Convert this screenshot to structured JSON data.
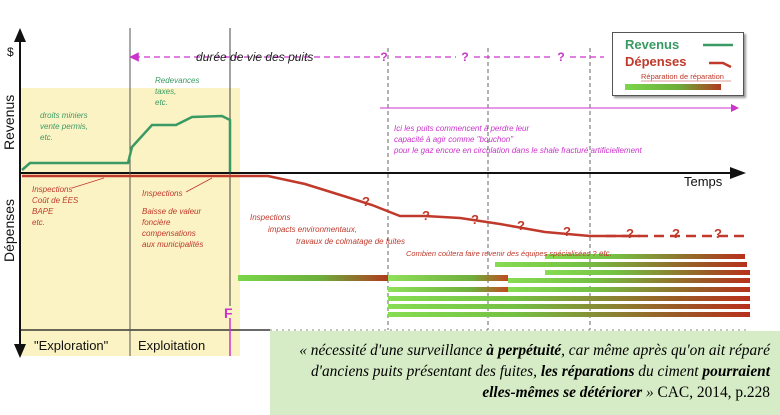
{
  "axes": {
    "y_symbol": "$",
    "y_upper_label": "Revenus",
    "y_lower_label": "Dépenses",
    "x_label": "Temps"
  },
  "phases": {
    "exploration": "\"Exploration\"",
    "exploitation": "Exploitation",
    "end_marker": "F"
  },
  "lifetime_label": "durée de vie des puits",
  "question_mark": "?",
  "revenue_notes": {
    "exploration": [
      "droits miniers",
      "vente permis,",
      "etc."
    ],
    "exploitation": [
      "Redevances",
      "taxes,",
      "etc."
    ]
  },
  "expense_notes": {
    "exploration": [
      "Inspections",
      "Coût de ÉES",
      "BAPE",
      "etc."
    ],
    "exploitation": [
      "Inspections",
      "Baisse de valeur",
      "foncière",
      "compensations",
      "aux municipalités"
    ],
    "post": [
      "Inspections",
      "impacts environmentaux,",
      "travaux de colmatage de fuites"
    ],
    "repair_cost": "Combien coûtera faire revenir des équipes spécialisées ?",
    "repair_cost_etc": "etc."
  },
  "leak_note": [
    "Ici les puits commencent à perdre leur",
    "capacité à agir comme \"bouchon\"",
    "pour le gaz encore en circulation dans le shale fracturé artificiellement"
  ],
  "legend": {
    "revenue": "Revenus",
    "expenses": "Dépenses",
    "repair": "Réparation de réparation"
  },
  "colors": {
    "revenue": "#3a9a64",
    "expenses": "#c0392b",
    "magenta": "#cc33cc",
    "highlight": "#fbf3c4",
    "quote_bg": "#d6ecc6"
  },
  "quote": {
    "p1": "« nécessité d'une surveillance ",
    "b1": "à perpétuité",
    "p2": ", car même après qu'on ait réparé d'anciens puits présentant des fuites, ",
    "b2": "les réparations",
    "p3": " du ciment ",
    "b3": "pourraient elles-mêmes se détériorer",
    "p4": " » ",
    "citation": "CAC, 2014,   p.228"
  }
}
